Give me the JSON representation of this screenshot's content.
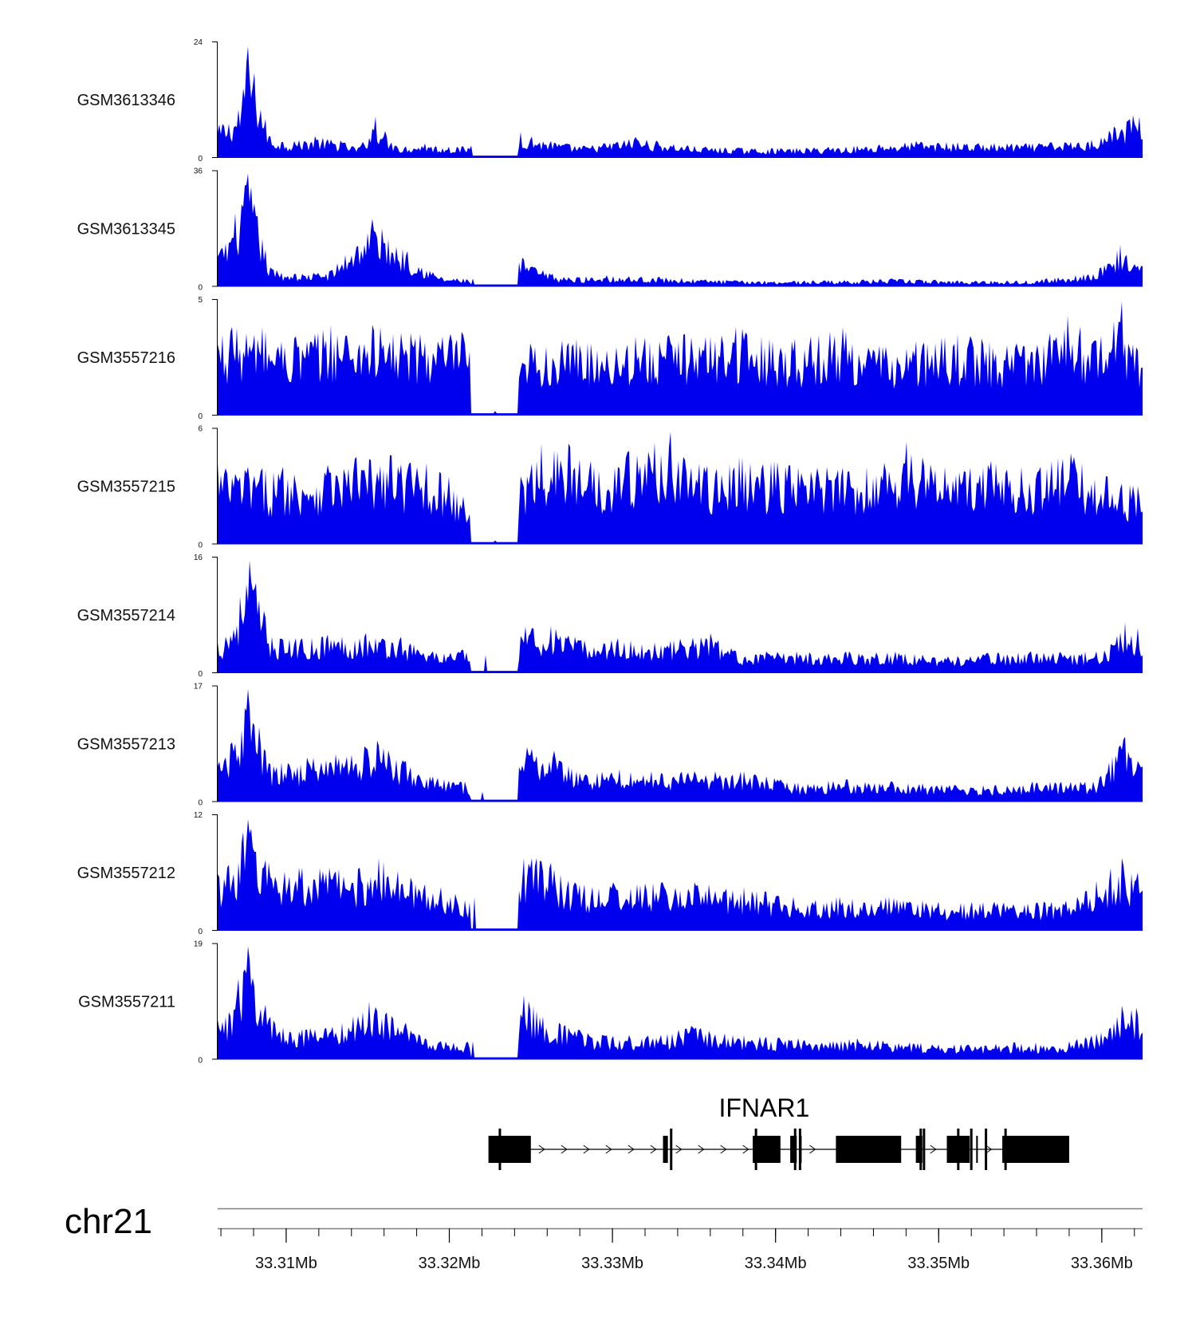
{
  "chart_data": {
    "type": "area",
    "chromosome": "chr21",
    "x_range_mb": [
      33.3058,
      33.3625
    ],
    "colors": {
      "signal": "#0000ee",
      "gene": "#000000",
      "axis": "#000000"
    },
    "tracks": [
      {
        "name": "GSM3613346",
        "ymax": 24,
        "ymin": 0,
        "peaks": [
          [
            33.3061,
            7
          ],
          [
            33.3071,
            10
          ],
          [
            33.3077,
            23
          ],
          [
            33.309,
            4.5
          ],
          [
            33.3105,
            3.5
          ],
          [
            33.3118,
            4.5
          ],
          [
            33.3133,
            3.6
          ],
          [
            33.3145,
            2.2
          ],
          [
            33.3155,
            8.5
          ],
          [
            33.3167,
            2.5
          ],
          [
            33.3185,
            3
          ],
          [
            33.32,
            2.3
          ],
          [
            33.3213,
            2.5
          ],
          [
            33.3225,
            0.2
          ],
          [
            33.3244,
            5.4
          ],
          [
            33.3251,
            4.4
          ],
          [
            33.3262,
            3.5
          ],
          [
            33.3283,
            2.5
          ],
          [
            33.3314,
            4.3
          ],
          [
            33.3346,
            2.6
          ],
          [
            33.3377,
            2.1
          ],
          [
            33.3401,
            2
          ],
          [
            33.3432,
            2.3
          ],
          [
            33.3464,
            2.8
          ],
          [
            33.3486,
            3.5
          ],
          [
            33.3545,
            3
          ],
          [
            33.3568,
            3.2
          ],
          [
            33.3594,
            3.8
          ],
          [
            33.3607,
            6.5
          ],
          [
            33.3619,
            8.8
          ]
        ]
      },
      {
        "name": "GSM3613345",
        "ymax": 36,
        "ymin": 0,
        "peaks": [
          [
            33.3061,
            12
          ],
          [
            33.3077,
            35
          ],
          [
            33.309,
            6
          ],
          [
            33.3105,
            4
          ],
          [
            33.3127,
            5
          ],
          [
            33.3153,
            21
          ],
          [
            33.3174,
            11
          ],
          [
            33.3195,
            3
          ],
          [
            33.3214,
            2.5
          ],
          [
            33.3225,
            0.2
          ],
          [
            33.3245,
            9
          ],
          [
            33.3253,
            6
          ],
          [
            33.327,
            3
          ],
          [
            33.3297,
            3.5
          ],
          [
            33.3329,
            3
          ],
          [
            33.3375,
            2
          ],
          [
            33.3432,
            2
          ],
          [
            33.3472,
            2.5
          ],
          [
            33.3512,
            2
          ],
          [
            33.3554,
            2
          ],
          [
            33.3584,
            3.5
          ],
          [
            33.36,
            6
          ],
          [
            33.3611,
            13
          ],
          [
            33.362,
            7
          ]
        ]
      },
      {
        "name": "GSM3557216",
        "ymax": 5,
        "ymin": 0,
        "peaks": [
          [
            33.3067,
            3.8
          ],
          [
            33.3085,
            3.8
          ],
          [
            33.3106,
            3.4
          ],
          [
            33.3127,
            3.9
          ],
          [
            33.3153,
            3.9
          ],
          [
            33.3182,
            3.5
          ],
          [
            33.3208,
            3.6
          ],
          [
            33.3228,
            0.2
          ],
          [
            33.325,
            3.1
          ],
          [
            33.3278,
            3.3
          ],
          [
            33.3314,
            3.4
          ],
          [
            33.3344,
            3.5
          ],
          [
            33.3376,
            3.8
          ],
          [
            33.3412,
            3.3
          ],
          [
            33.3441,
            3.8
          ],
          [
            33.3464,
            3
          ],
          [
            33.3486,
            3.2
          ],
          [
            33.3512,
            3.5
          ],
          [
            33.3548,
            3.1
          ],
          [
            33.3579,
            4.3
          ],
          [
            33.3597,
            3.2
          ],
          [
            33.3612,
            4.9
          ],
          [
            33.3622,
            2.8
          ]
        ]
      },
      {
        "name": "GSM3557215",
        "ymax": 6,
        "ymin": 0,
        "peaks": [
          [
            33.3058,
            4.2
          ],
          [
            33.3077,
            4
          ],
          [
            33.3098,
            4
          ],
          [
            33.3125,
            4.1
          ],
          [
            33.3143,
            4.5
          ],
          [
            33.3164,
            4.6
          ],
          [
            33.3186,
            4.2
          ],
          [
            33.32,
            3.5
          ],
          [
            33.3228,
            0.2
          ],
          [
            33.3244,
            3.5
          ],
          [
            33.3256,
            5.2
          ],
          [
            33.3273,
            5.2
          ],
          [
            33.3287,
            4.3
          ],
          [
            33.331,
            4.8
          ],
          [
            33.3336,
            5.8
          ],
          [
            33.3356,
            4
          ],
          [
            33.3378,
            4.5
          ],
          [
            33.3399,
            4.3
          ],
          [
            33.3431,
            4
          ],
          [
            33.3456,
            4
          ],
          [
            33.348,
            5.3
          ],
          [
            33.3504,
            4
          ],
          [
            33.3532,
            4.3
          ],
          [
            33.3551,
            4
          ],
          [
            33.3581,
            4.7
          ],
          [
            33.3603,
            3.5
          ],
          [
            33.3622,
            3
          ]
        ]
      },
      {
        "name": "GSM3557214",
        "ymax": 16,
        "ymin": 0,
        "peaks": [
          [
            33.3063,
            5
          ],
          [
            33.3078,
            15.5
          ],
          [
            33.3091,
            5
          ],
          [
            33.311,
            4.8
          ],
          [
            33.3125,
            5.3
          ],
          [
            33.3149,
            5.5
          ],
          [
            33.317,
            5
          ],
          [
            33.319,
            3
          ],
          [
            33.3208,
            3.2
          ],
          [
            33.3222,
            2.5
          ],
          [
            33.323,
            0.2
          ],
          [
            33.3247,
            6.4
          ],
          [
            33.3262,
            6.5
          ],
          [
            33.3283,
            4.5
          ],
          [
            33.3303,
            4.8
          ],
          [
            33.3326,
            4.2
          ],
          [
            33.336,
            5.5
          ],
          [
            33.3376,
            3
          ],
          [
            33.3413,
            3
          ],
          [
            33.3445,
            3
          ],
          [
            33.3473,
            3
          ],
          [
            33.3506,
            2.3
          ],
          [
            33.353,
            2.8
          ],
          [
            33.3557,
            3
          ],
          [
            33.3597,
            3
          ],
          [
            33.3605,
            4
          ],
          [
            33.3614,
            7
          ],
          [
            33.3622,
            6.2
          ]
        ]
      },
      {
        "name": "GSM3557213",
        "ymax": 17,
        "ymin": 0,
        "peaks": [
          [
            33.3062,
            6
          ],
          [
            33.3077,
            16.5
          ],
          [
            33.309,
            5.5
          ],
          [
            33.3113,
            6.5
          ],
          [
            33.313,
            7
          ],
          [
            33.3156,
            9
          ],
          [
            33.3173,
            6
          ],
          [
            33.3193,
            3.5
          ],
          [
            33.321,
            3
          ],
          [
            33.322,
            1.5
          ],
          [
            33.3228,
            0.2
          ],
          [
            33.3248,
            8
          ],
          [
            33.3264,
            7.5
          ],
          [
            33.3278,
            4.5
          ],
          [
            33.3304,
            4.8
          ],
          [
            33.3324,
            4.5
          ],
          [
            33.335,
            4.5
          ],
          [
            33.3363,
            4.5
          ],
          [
            33.3381,
            4.5
          ],
          [
            33.3412,
            2.8
          ],
          [
            33.3443,
            3.3
          ],
          [
            33.3472,
            3
          ],
          [
            33.351,
            2.5
          ],
          [
            33.3535,
            2.5
          ],
          [
            33.3558,
            3
          ],
          [
            33.3595,
            3
          ],
          [
            33.3614,
            9.5
          ],
          [
            33.3622,
            6
          ]
        ]
      },
      {
        "name": "GSM3557212",
        "ymax": 12,
        "ymin": 0,
        "peaks": [
          [
            33.3064,
            6.5
          ],
          [
            33.3077,
            11.5
          ],
          [
            33.3089,
            7
          ],
          [
            33.3108,
            6.5
          ],
          [
            33.3126,
            6.5
          ],
          [
            33.3145,
            6.5
          ],
          [
            33.3157,
            7.5
          ],
          [
            33.3176,
            5.5
          ],
          [
            33.3195,
            4.5
          ],
          [
            33.3215,
            3.5
          ],
          [
            33.3228,
            0.2
          ],
          [
            33.3246,
            7.5
          ],
          [
            33.3254,
            7.5
          ],
          [
            33.3262,
            7
          ],
          [
            33.3277,
            5
          ],
          [
            33.33,
            5
          ],
          [
            33.3331,
            5
          ],
          [
            33.335,
            5
          ],
          [
            33.3381,
            4.5
          ],
          [
            33.3411,
            3.5
          ],
          [
            33.3439,
            3.5
          ],
          [
            33.347,
            3.5
          ],
          [
            33.35,
            3
          ],
          [
            33.3534,
            3
          ],
          [
            33.3564,
            3
          ],
          [
            33.3585,
            3.5
          ],
          [
            33.3612,
            7.5
          ],
          [
            33.3622,
            6
          ]
        ]
      },
      {
        "name": "GSM3557211",
        "ymax": 19,
        "ymin": 0,
        "peaks": [
          [
            33.3063,
            7
          ],
          [
            33.3077,
            18.5
          ],
          [
            33.309,
            7
          ],
          [
            33.311,
            5
          ],
          [
            33.3134,
            6
          ],
          [
            33.3151,
            9.5
          ],
          [
            33.3173,
            6
          ],
          [
            33.3195,
            3
          ],
          [
            33.3214,
            3
          ],
          [
            33.3228,
            0.2
          ],
          [
            33.3246,
            10.5
          ],
          [
            33.3254,
            8
          ],
          [
            33.3267,
            6
          ],
          [
            33.3294,
            4
          ],
          [
            33.331,
            4
          ],
          [
            33.333,
            4
          ],
          [
            33.3348,
            5.5
          ],
          [
            33.3381,
            4
          ],
          [
            33.3414,
            3.5
          ],
          [
            33.345,
            3.5
          ],
          [
            33.3482,
            2.8
          ],
          [
            33.3514,
            2.5
          ],
          [
            33.3547,
            2.8
          ],
          [
            33.358,
            3
          ],
          [
            33.3604,
            5
          ],
          [
            33.3612,
            8.8
          ],
          [
            33.3621,
            8.5
          ]
        ]
      }
    ],
    "gene": {
      "name": "IFNAR1",
      "exons_mb": [
        [
          33.3224,
          33.325
        ],
        [
          33.3331,
          33.3334
        ],
        [
          33.3386,
          33.3403
        ],
        [
          33.3409,
          33.3413
        ],
        [
          33.3415,
          33.3416
        ],
        [
          33.3437,
          33.3477
        ],
        [
          33.3486,
          33.349
        ],
        [
          33.3505,
          33.3519
        ],
        [
          33.3523,
          33.3524
        ],
        [
          33.3539,
          33.358
        ]
      ],
      "tall_lines_mb": [
        33.3231,
        33.3336,
        33.3388,
        33.3412,
        33.3415,
        33.3489,
        33.3491,
        33.3512,
        33.352,
        33.3529,
        33.3541
      ]
    },
    "x_ticks": [
      {
        "value": 33.31,
        "label": "33.31Mb"
      },
      {
        "value": 33.32,
        "label": "33.32Mb"
      },
      {
        "value": 33.33,
        "label": "33.33Mb"
      },
      {
        "value": 33.34,
        "label": "33.34Mb"
      },
      {
        "value": 33.35,
        "label": "33.35Mb"
      },
      {
        "value": 33.36,
        "label": "33.36Mb"
      }
    ],
    "minor_tick_step_mb": 0.002
  }
}
